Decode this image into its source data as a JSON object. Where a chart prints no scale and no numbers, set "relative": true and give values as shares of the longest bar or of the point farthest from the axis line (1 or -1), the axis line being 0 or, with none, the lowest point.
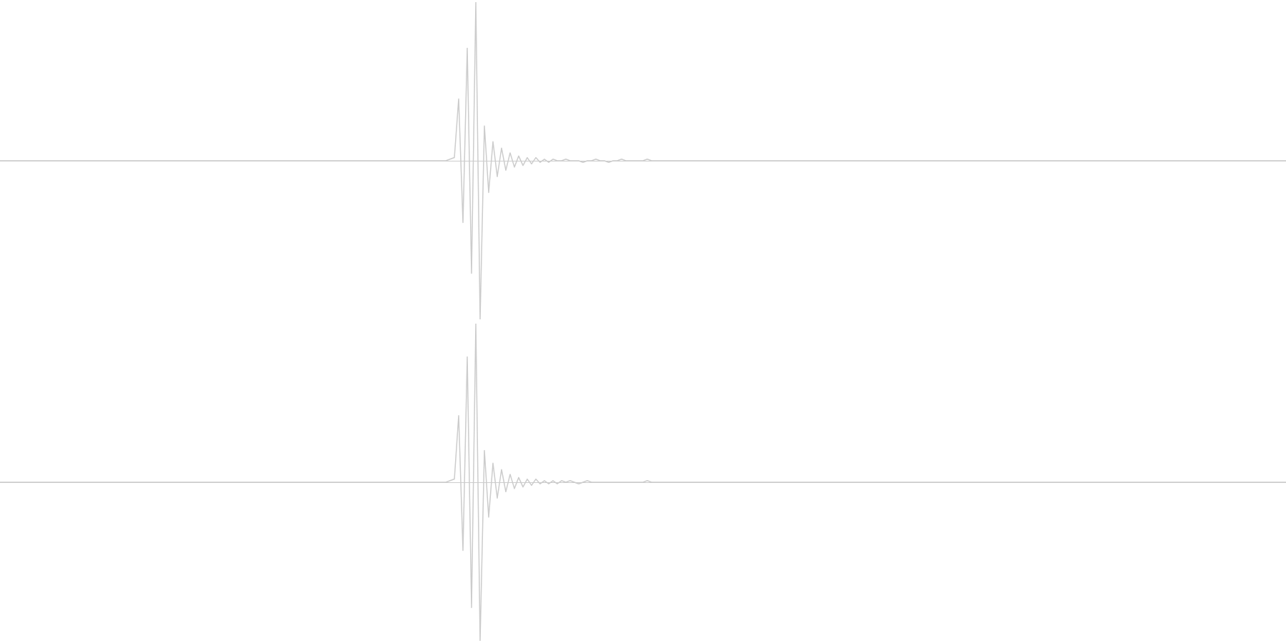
{
  "chart_data": [
    {
      "type": "line",
      "relative": true,
      "marker": "none",
      "color": "#cccccc",
      "categories": [
        null,
        null,
        null,
        null,
        null,
        null,
        null,
        null,
        null,
        null,
        null,
        null,
        null,
        null,
        null,
        null,
        null,
        null,
        null,
        null,
        null,
        null,
        null,
        null,
        null,
        null,
        null,
        null,
        null,
        null,
        null,
        null,
        null,
        null,
        null,
        null,
        null,
        null,
        null,
        null,
        null,
        null,
        null,
        null,
        null,
        null,
        null,
        null,
        null,
        null,
        null,
        null,
        null,
        null,
        null,
        null,
        null,
        null,
        null,
        null,
        null,
        null,
        null,
        null,
        null,
        null,
        null,
        null,
        null,
        null,
        null,
        null,
        null,
        null,
        null,
        null,
        null,
        null,
        null,
        null,
        null,
        null,
        null,
        null,
        null,
        null,
        null,
        null,
        null,
        null,
        null,
        null,
        null,
        null,
        null,
        null,
        null,
        null,
        null,
        null,
        null,
        null,
        null,
        null,
        null,
        null,
        null,
        null,
        null,
        null,
        null,
        null,
        null,
        null,
        null,
        null,
        null,
        null,
        null,
        null,
        null,
        null,
        null,
        null,
        null,
        null,
        null,
        null,
        null,
        null,
        null,
        null,
        null,
        null,
        null,
        null,
        null,
        null,
        null,
        null,
        null,
        null,
        null,
        null,
        null,
        null,
        null,
        null,
        null,
        null,
        null,
        null,
        null,
        null,
        null,
        null,
        null,
        null,
        null,
        null,
        null,
        null,
        null,
        null,
        null,
        null,
        null,
        null,
        null,
        null,
        null,
        null,
        null,
        null,
        null,
        null,
        null,
        null,
        null,
        null,
        null,
        null,
        null,
        null,
        null,
        null,
        null,
        null,
        null,
        null,
        null,
        null,
        null,
        null,
        null,
        null,
        null,
        null,
        null,
        null,
        null,
        null,
        null,
        null,
        null,
        null,
        null,
        null,
        null,
        null,
        null,
        null,
        null,
        null,
        null,
        null,
        null,
        null,
        null,
        null,
        null,
        null,
        null,
        null,
        null,
        null,
        null,
        null,
        null,
        null,
        null,
        null,
        null,
        null,
        null,
        null,
        null,
        null,
        null,
        null,
        null,
        null,
        null,
        null,
        null,
        null,
        null,
        null,
        null,
        null,
        null,
        null,
        null,
        null,
        null,
        null,
        null,
        null,
        null,
        null,
        null,
        null,
        null,
        null,
        null,
        null,
        null,
        null,
        null,
        null,
        null,
        null,
        null,
        null,
        null,
        null,
        null,
        null,
        null,
        null,
        null,
        null,
        null,
        null,
        null,
        null,
        null,
        null,
        null,
        null,
        null,
        null,
        null,
        null,
        null,
        null,
        null,
        null,
        null,
        null,
        null
      ],
      "values": [
        0,
        0,
        0,
        0,
        0,
        0,
        0,
        0,
        0,
        0,
        0,
        0,
        0,
        0,
        0,
        0,
        0,
        0,
        0,
        0,
        0,
        0,
        0,
        0,
        0,
        0,
        0,
        0,
        0,
        0,
        0,
        0,
        0,
        0,
        0,
        0,
        0,
        0,
        0,
        0,
        0,
        0,
        0,
        0,
        0,
        0,
        0,
        0,
        0,
        0,
        0,
        0,
        0,
        0,
        0,
        0,
        0,
        0,
        0,
        0,
        0,
        0,
        0,
        0,
        0,
        0,
        0,
        0,
        0,
        0,
        0,
        0,
        0,
        0,
        0,
        0,
        0,
        0,
        0,
        0,
        0,
        0,
        0,
        0,
        0,
        0,
        0,
        0,
        0,
        0,
        0,
        0,
        0,
        0,
        0,
        0,
        0,
        0,
        0,
        0,
        0,
        0,
        0,
        0,
        0,
        0.01,
        0.02,
        0.39,
        -0.39,
        0.71,
        -0.71,
        1,
        -1,
        0.22,
        -0.2,
        0.12,
        -0.1,
        0.08,
        -0.06,
        0.05,
        -0.04,
        0.03,
        -0.03,
        0.02,
        -0.02,
        0.02,
        -0.01,
        0.01,
        -0.01,
        0.01,
        0,
        0,
        0.01,
        0,
        0,
        0,
        -0.01,
        0,
        0,
        0.01,
        0,
        0,
        -0.01,
        0,
        0,
        0.01,
        0,
        0,
        0,
        0,
        0,
        0.01,
        0,
        0,
        0,
        0,
        0,
        0,
        0,
        0,
        0,
        0,
        0,
        0,
        0,
        0,
        0,
        0,
        0,
        0,
        0,
        0,
        0,
        0,
        0,
        0,
        0,
        0,
        0,
        0,
        0,
        0,
        0,
        0,
        0,
        0,
        0,
        0,
        0,
        0,
        0,
        0,
        0,
        0,
        0,
        0,
        0,
        0,
        0,
        0,
        0,
        0,
        0,
        0,
        0,
        0,
        0,
        0,
        0,
        0,
        0,
        0,
        0,
        0,
        0,
        0,
        0,
        0,
        0,
        0,
        0,
        0,
        0,
        0,
        0,
        0,
        0,
        0,
        0,
        0,
        0,
        0,
        0,
        0,
        0,
        0,
        0,
        0,
        0,
        0,
        0,
        0,
        0,
        0,
        0,
        0,
        0,
        0,
        0,
        0,
        0,
        0,
        0,
        0,
        0,
        0,
        0,
        0,
        0,
        0,
        0,
        0,
        0,
        0,
        0,
        0,
        0,
        0,
        0,
        0,
        0,
        0,
        0,
        0,
        0,
        0,
        0,
        0,
        0,
        0,
        0,
        0,
        0,
        0,
        0,
        0,
        0,
        0,
        0,
        0,
        0,
        0,
        0,
        0,
        0,
        0,
        0,
        0,
        0,
        0,
        0
      ]
    },
    {
      "type": "line",
      "relative": true,
      "marker": "none",
      "color": "#cccccc",
      "categories": [
        null,
        null,
        null,
        null,
        null,
        null,
        null,
        null,
        null,
        null,
        null,
        null,
        null,
        null,
        null,
        null,
        null,
        null,
        null,
        null,
        null,
        null,
        null,
        null,
        null,
        null,
        null,
        null,
        null,
        null,
        null,
        null,
        null,
        null,
        null,
        null,
        null,
        null,
        null,
        null,
        null,
        null,
        null,
        null,
        null,
        null,
        null,
        null,
        null,
        null,
        null,
        null,
        null,
        null,
        null,
        null,
        null,
        null,
        null,
        null,
        null,
        null,
        null,
        null,
        null,
        null,
        null,
        null,
        null,
        null,
        null,
        null,
        null,
        null,
        null,
        null,
        null,
        null,
        null,
        null,
        null,
        null,
        null,
        null,
        null,
        null,
        null,
        null,
        null,
        null,
        null,
        null,
        null,
        null,
        null,
        null,
        null,
        null,
        null,
        null,
        null,
        null,
        null,
        null,
        null,
        null,
        null,
        null,
        null,
        null,
        null,
        null,
        null,
        null,
        null,
        null,
        null,
        null,
        null,
        null,
        null,
        null,
        null,
        null,
        null,
        null,
        null,
        null,
        null,
        null,
        null,
        null,
        null,
        null,
        null,
        null,
        null,
        null,
        null,
        null,
        null,
        null,
        null,
        null,
        null,
        null,
        null,
        null,
        null,
        null,
        null,
        null,
        null,
        null,
        null,
        null,
        null,
        null,
        null,
        null,
        null,
        null,
        null,
        null,
        null,
        null,
        null,
        null,
        null,
        null,
        null,
        null,
        null,
        null,
        null,
        null,
        null,
        null,
        null,
        null,
        null,
        null,
        null,
        null,
        null,
        null,
        null,
        null,
        null,
        null,
        null,
        null,
        null,
        null,
        null,
        null,
        null,
        null,
        null,
        null,
        null,
        null,
        null,
        null,
        null,
        null,
        null,
        null,
        null,
        null,
        null,
        null,
        null,
        null,
        null,
        null,
        null,
        null,
        null,
        null,
        null,
        null,
        null,
        null,
        null,
        null,
        null,
        null,
        null,
        null,
        null,
        null,
        null,
        null,
        null,
        null,
        null,
        null,
        null,
        null,
        null,
        null,
        null,
        null,
        null,
        null,
        null,
        null,
        null,
        null,
        null,
        null,
        null,
        null,
        null,
        null,
        null,
        null,
        null,
        null,
        null,
        null,
        null,
        null,
        null,
        null,
        null,
        null,
        null,
        null,
        null,
        null,
        null,
        null,
        null,
        null,
        null,
        null,
        null,
        null,
        null,
        null,
        null,
        null,
        null,
        null,
        null,
        null,
        null,
        null,
        null,
        null,
        null,
        null,
        null,
        null,
        null,
        null,
        null,
        null,
        null
      ],
      "values": [
        0,
        0,
        0,
        0,
        0,
        0,
        0,
        0,
        0,
        0,
        0,
        0,
        0,
        0,
        0,
        0,
        0,
        0,
        0,
        0,
        0,
        0,
        0,
        0,
        0,
        0,
        0,
        0,
        0,
        0,
        0,
        0,
        0,
        0,
        0,
        0,
        0,
        0,
        0,
        0,
        0,
        0,
        0,
        0,
        0,
        0,
        0,
        0,
        0,
        0,
        0,
        0,
        0,
        0,
        0,
        0,
        0,
        0,
        0,
        0,
        0,
        0,
        0,
        0,
        0,
        0,
        0,
        0,
        0,
        0,
        0,
        0,
        0,
        0,
        0,
        0,
        0,
        0,
        0,
        0,
        0,
        0,
        0,
        0,
        0,
        0,
        0,
        0,
        0,
        0,
        0,
        0,
        0,
        0,
        0,
        0,
        0,
        0,
        0,
        0,
        0,
        0,
        0,
        0,
        0,
        0.01,
        0.02,
        0.42,
        -0.43,
        0.79,
        -0.79,
        1,
        -1,
        0.2,
        -0.22,
        0.12,
        -0.1,
        0.08,
        -0.06,
        0.05,
        -0.04,
        0.03,
        -0.03,
        0.02,
        -0.02,
        0.02,
        -0.01,
        0.01,
        -0.01,
        0.01,
        -0.01,
        0.01,
        0,
        0.01,
        0,
        -0.01,
        0,
        0.01,
        0,
        0,
        0,
        0,
        0,
        0,
        0,
        0,
        0,
        0,
        0,
        0,
        0,
        0.01,
        0,
        0,
        0,
        0,
        0,
        0,
        0,
        0,
        0,
        0,
        0,
        0,
        0,
        0,
        0,
        0,
        0,
        0,
        0,
        0,
        0,
        0,
        0,
        0,
        0,
        0,
        0,
        0,
        0,
        0,
        0,
        0,
        0,
        0,
        0,
        0,
        0,
        0,
        0,
        0,
        0,
        0,
        0,
        0,
        0,
        0,
        0,
        0,
        0,
        0,
        0,
        0,
        0,
        0,
        0,
        0,
        0,
        0,
        0,
        0,
        0,
        0,
        0,
        0,
        0,
        0,
        0,
        0,
        0,
        0,
        0,
        0,
        0,
        0,
        0,
        0,
        0,
        0,
        0,
        0,
        0,
        0,
        0,
        0,
        0,
        0,
        0,
        0,
        0,
        0,
        0,
        0,
        0,
        0,
        0,
        0,
        0,
        0,
        0,
        0,
        0,
        0,
        0,
        0,
        0,
        0,
        0,
        0,
        0,
        0,
        0,
        0,
        0,
        0,
        0,
        0,
        0,
        0,
        0,
        0,
        0,
        0,
        0,
        0,
        0,
        0,
        0,
        0,
        0,
        0,
        0,
        0,
        0,
        0,
        0,
        0,
        0,
        0,
        0,
        0,
        0,
        0,
        0,
        0,
        0,
        0,
        0,
        0,
        0
      ]
    }
  ]
}
